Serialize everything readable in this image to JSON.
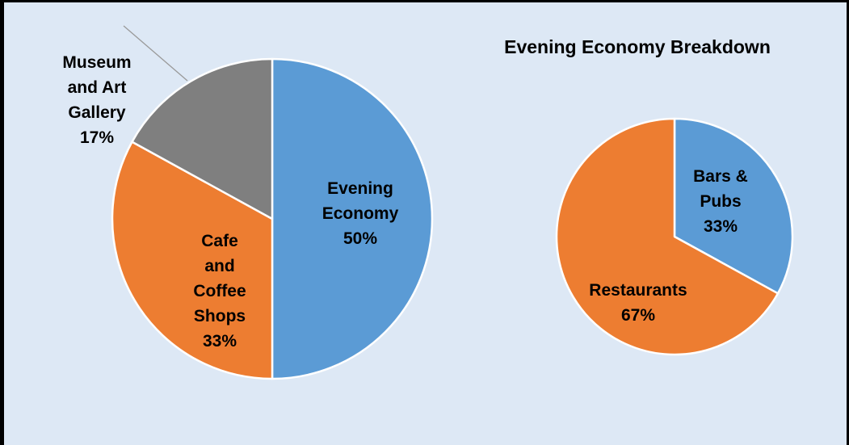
{
  "chart_data": [
    {
      "type": "pie",
      "title": "",
      "slices": [
        {
          "label_lines": [
            "Evening",
            "Economy",
            "50%"
          ],
          "value": 50,
          "color": "#5b9bd5"
        },
        {
          "label_lines": [
            "Cafe",
            "and",
            "Coffee",
            "Shops",
            "33%"
          ],
          "value": 33,
          "color": "#ed7d31"
        },
        {
          "label_lines": [
            "Museum",
            "and Art",
            "Gallery",
            "17%"
          ],
          "value": 17,
          "color": "#7f7f7f"
        }
      ]
    },
    {
      "type": "pie",
      "title": "Evening Economy Breakdown",
      "slices": [
        {
          "label_lines": [
            "Bars &",
            "Pubs",
            "33%"
          ],
          "value": 33,
          "color": "#5b9bd5"
        },
        {
          "label_lines": [
            "Restaurants",
            "67%"
          ],
          "value": 67,
          "color": "#ed7d31"
        }
      ]
    }
  ]
}
